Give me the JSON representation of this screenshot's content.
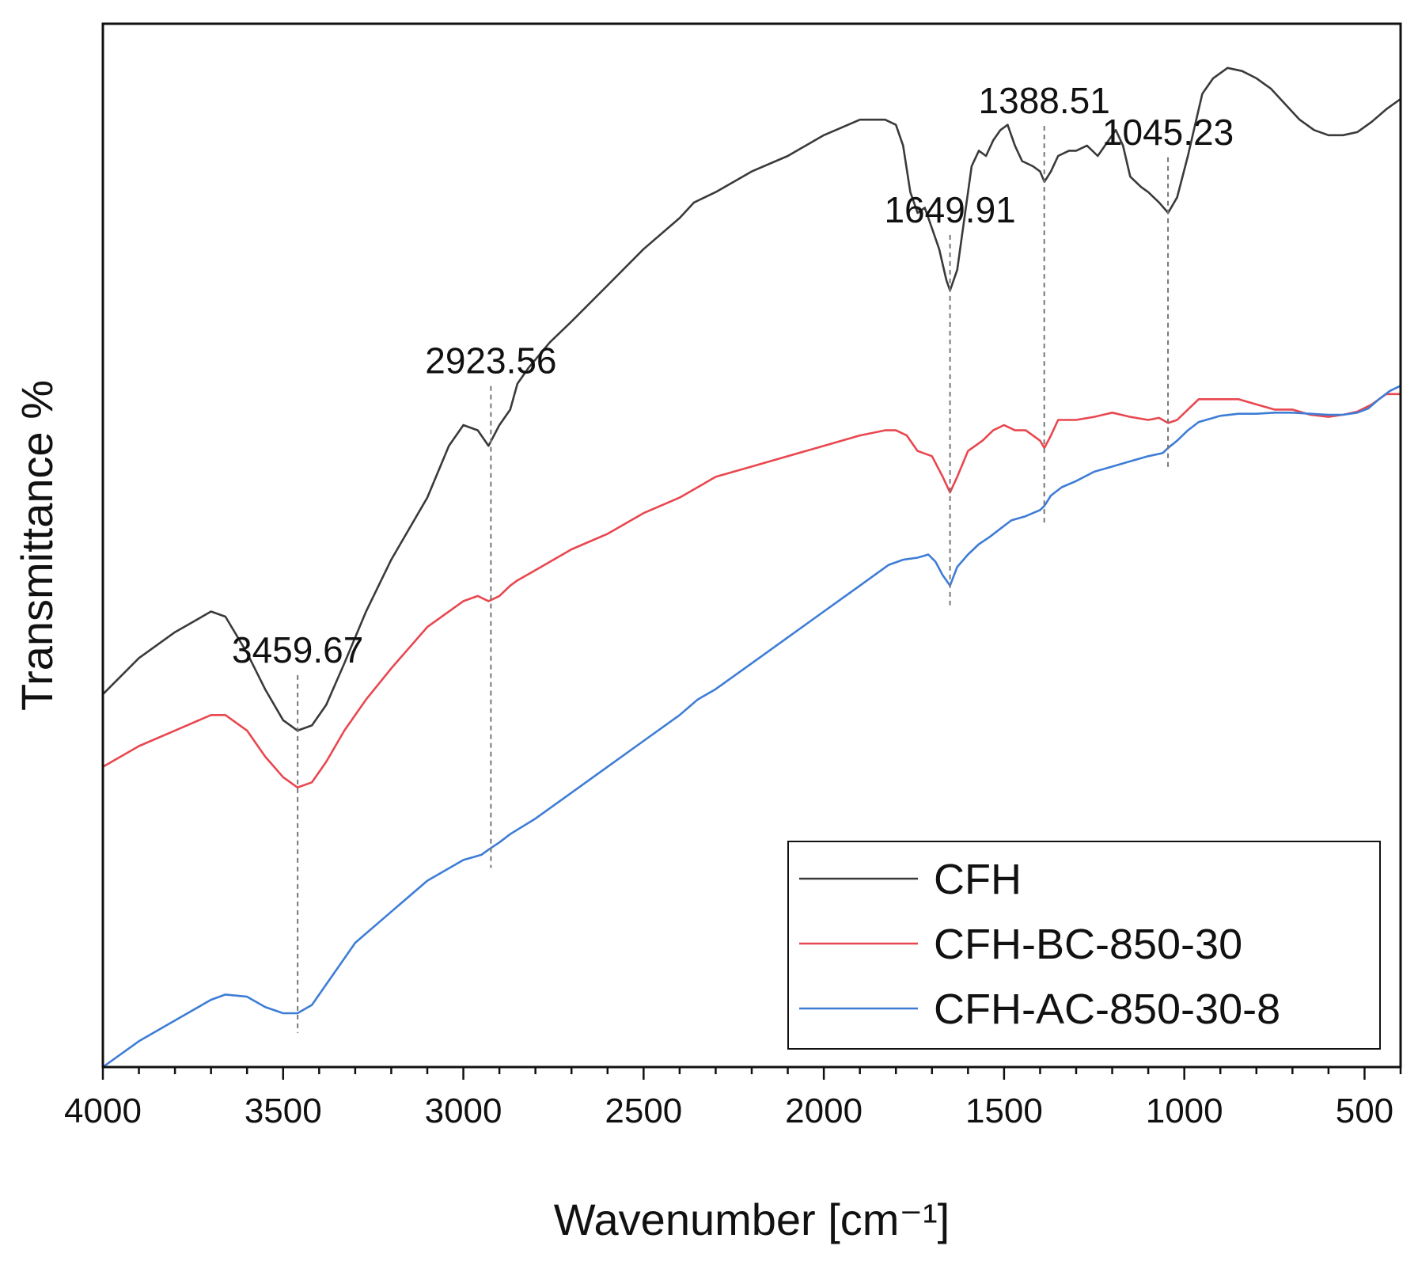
{
  "chart_data": {
    "type": "line",
    "title": "",
    "xlabel": "Wavenumber [cm⁻¹]",
    "ylabel": "Transmittance %",
    "xlim": [
      4000,
      400
    ],
    "x_reversed": true,
    "y_units": "arbitrary (offset, no tick labels)",
    "ylim": [
      0,
      100
    ],
    "x_ticks": [
      4000,
      3500,
      3000,
      2500,
      2000,
      1500,
      1000,
      500
    ],
    "x_tick_labels": [
      "4000",
      "3500",
      "3000",
      "2500",
      "2000",
      "1500",
      "1000",
      "500"
    ],
    "grid": false,
    "legend_position": "bottom-right",
    "series": [
      {
        "name": "CFH",
        "color": "#3a3a3a",
        "points": [
          [
            4000,
            36
          ],
          [
            3900,
            39.5
          ],
          [
            3800,
            42
          ],
          [
            3750,
            43
          ],
          [
            3700,
            44
          ],
          [
            3660,
            43.5
          ],
          [
            3600,
            40
          ],
          [
            3550,
            36.5
          ],
          [
            3500,
            33.5
          ],
          [
            3460,
            32.5
          ],
          [
            3420,
            33
          ],
          [
            3380,
            35
          ],
          [
            3330,
            39
          ],
          [
            3270,
            44
          ],
          [
            3200,
            49
          ],
          [
            3100,
            55
          ],
          [
            3040,
            60
          ],
          [
            3000,
            62
          ],
          [
            2960,
            61.5
          ],
          [
            2930,
            60
          ],
          [
            2900,
            62
          ],
          [
            2870,
            63.5
          ],
          [
            2850,
            66
          ],
          [
            2820,
            67.5
          ],
          [
            2760,
            70
          ],
          [
            2700,
            72
          ],
          [
            2600,
            75.5
          ],
          [
            2500,
            79
          ],
          [
            2400,
            82
          ],
          [
            2360,
            83.5
          ],
          [
            2300,
            84.5
          ],
          [
            2200,
            86.5
          ],
          [
            2100,
            88
          ],
          [
            2000,
            90
          ],
          [
            1900,
            91.5
          ],
          [
            1830,
            91.5
          ],
          [
            1800,
            91
          ],
          [
            1780,
            89
          ],
          [
            1760,
            84.5
          ],
          [
            1740,
            82.5
          ],
          [
            1720,
            83
          ],
          [
            1700,
            81
          ],
          [
            1680,
            79
          ],
          [
            1660,
            76
          ],
          [
            1650,
            75
          ],
          [
            1630,
            77
          ],
          [
            1610,
            82
          ],
          [
            1590,
            87
          ],
          [
            1570,
            88.5
          ],
          [
            1550,
            88
          ],
          [
            1530,
            89.5
          ],
          [
            1510,
            90.5
          ],
          [
            1490,
            91
          ],
          [
            1470,
            89
          ],
          [
            1450,
            87.5
          ],
          [
            1420,
            87
          ],
          [
            1400,
            86.5
          ],
          [
            1388,
            85.5
          ],
          [
            1370,
            86.5
          ],
          [
            1350,
            88
          ],
          [
            1320,
            88.5
          ],
          [
            1300,
            88.5
          ],
          [
            1270,
            89
          ],
          [
            1240,
            88
          ],
          [
            1210,
            89.5
          ],
          [
            1190,
            90.5
          ],
          [
            1170,
            89
          ],
          [
            1150,
            86
          ],
          [
            1120,
            85
          ],
          [
            1100,
            84.5
          ],
          [
            1070,
            83.5
          ],
          [
            1045,
            82.5
          ],
          [
            1020,
            84
          ],
          [
            990,
            88
          ],
          [
            970,
            91
          ],
          [
            950,
            94
          ],
          [
            920,
            95.5
          ],
          [
            880,
            96.5
          ],
          [
            840,
            96.2
          ],
          [
            800,
            95.5
          ],
          [
            760,
            94.5
          ],
          [
            720,
            93
          ],
          [
            680,
            91.5
          ],
          [
            640,
            90.5
          ],
          [
            600,
            90
          ],
          [
            560,
            90
          ],
          [
            520,
            90.3
          ],
          [
            480,
            91.3
          ],
          [
            440,
            92.5
          ],
          [
            400,
            93.5
          ]
        ]
      },
      {
        "name": "CFH-BC-850-30",
        "color": "#e8474f",
        "points": [
          [
            4000,
            29
          ],
          [
            3900,
            31
          ],
          [
            3800,
            32.5
          ],
          [
            3700,
            34
          ],
          [
            3660,
            34
          ],
          [
            3600,
            32.5
          ],
          [
            3550,
            30
          ],
          [
            3500,
            28
          ],
          [
            3460,
            27
          ],
          [
            3420,
            27.5
          ],
          [
            3380,
            29.5
          ],
          [
            3330,
            32.5
          ],
          [
            3270,
            35.5
          ],
          [
            3200,
            38.5
          ],
          [
            3100,
            42.5
          ],
          [
            3000,
            45
          ],
          [
            2960,
            45.5
          ],
          [
            2930,
            45
          ],
          [
            2900,
            45.5
          ],
          [
            2870,
            46.5
          ],
          [
            2850,
            47
          ],
          [
            2800,
            48
          ],
          [
            2700,
            50
          ],
          [
            2600,
            51.5
          ],
          [
            2500,
            53.5
          ],
          [
            2400,
            55
          ],
          [
            2300,
            57
          ],
          [
            2200,
            58
          ],
          [
            2100,
            59
          ],
          [
            2000,
            60
          ],
          [
            1900,
            61
          ],
          [
            1830,
            61.5
          ],
          [
            1800,
            61.5
          ],
          [
            1770,
            61
          ],
          [
            1740,
            59.5
          ],
          [
            1700,
            59
          ],
          [
            1670,
            57
          ],
          [
            1650,
            55.5
          ],
          [
            1630,
            57
          ],
          [
            1600,
            59.5
          ],
          [
            1560,
            60.5
          ],
          [
            1530,
            61.5
          ],
          [
            1500,
            62
          ],
          [
            1470,
            61.5
          ],
          [
            1440,
            61.5
          ],
          [
            1420,
            61
          ],
          [
            1400,
            60.5
          ],
          [
            1388,
            59.8
          ],
          [
            1370,
            61
          ],
          [
            1350,
            62.5
          ],
          [
            1300,
            62.5
          ],
          [
            1250,
            62.8
          ],
          [
            1200,
            63.2
          ],
          [
            1150,
            62.8
          ],
          [
            1100,
            62.5
          ],
          [
            1070,
            62.7
          ],
          [
            1045,
            62.2
          ],
          [
            1020,
            62.5
          ],
          [
            990,
            63.5
          ],
          [
            960,
            64.5
          ],
          [
            930,
            64.5
          ],
          [
            900,
            64.5
          ],
          [
            850,
            64.5
          ],
          [
            800,
            64
          ],
          [
            750,
            63.5
          ],
          [
            700,
            63.5
          ],
          [
            650,
            63
          ],
          [
            600,
            62.8
          ],
          [
            560,
            63
          ],
          [
            520,
            63.3
          ],
          [
            480,
            64
          ],
          [
            440,
            65
          ],
          [
            400,
            65
          ]
        ]
      },
      {
        "name": "CFH-AC-850-30-8",
        "color": "#3e7dd6",
        "points": [
          [
            4000,
            0
          ],
          [
            3900,
            2.5
          ],
          [
            3800,
            4.5
          ],
          [
            3700,
            6.5
          ],
          [
            3660,
            7
          ],
          [
            3600,
            6.8
          ],
          [
            3550,
            5.8
          ],
          [
            3500,
            5.2
          ],
          [
            3460,
            5.2
          ],
          [
            3420,
            6
          ],
          [
            3380,
            8
          ],
          [
            3330,
            10.5
          ],
          [
            3300,
            12
          ],
          [
            3200,
            15
          ],
          [
            3100,
            18
          ],
          [
            3000,
            20
          ],
          [
            2950,
            20.5
          ],
          [
            2930,
            21
          ],
          [
            2900,
            21.7
          ],
          [
            2870,
            22.5
          ],
          [
            2800,
            24
          ],
          [
            2700,
            26.5
          ],
          [
            2600,
            29
          ],
          [
            2500,
            31.5
          ],
          [
            2400,
            34
          ],
          [
            2350,
            35.5
          ],
          [
            2300,
            36.5
          ],
          [
            2200,
            39
          ],
          [
            2100,
            41.5
          ],
          [
            2000,
            44
          ],
          [
            1900,
            46.5
          ],
          [
            1820,
            48.5
          ],
          [
            1780,
            49
          ],
          [
            1740,
            49.2
          ],
          [
            1710,
            49.5
          ],
          [
            1690,
            48.8
          ],
          [
            1670,
            47.5
          ],
          [
            1650,
            46.5
          ],
          [
            1630,
            48.3
          ],
          [
            1600,
            49.5
          ],
          [
            1570,
            50.5
          ],
          [
            1540,
            51.2
          ],
          [
            1510,
            52
          ],
          [
            1480,
            52.8
          ],
          [
            1440,
            53.2
          ],
          [
            1400,
            53.8
          ],
          [
            1388,
            54.2
          ],
          [
            1370,
            55.2
          ],
          [
            1340,
            56
          ],
          [
            1300,
            56.6
          ],
          [
            1250,
            57.5
          ],
          [
            1200,
            58
          ],
          [
            1150,
            58.5
          ],
          [
            1100,
            59
          ],
          [
            1060,
            59.3
          ],
          [
            1045,
            59.8
          ],
          [
            1020,
            60.5
          ],
          [
            990,
            61.5
          ],
          [
            960,
            62.3
          ],
          [
            930,
            62.6
          ],
          [
            900,
            62.9
          ],
          [
            850,
            63.1
          ],
          [
            800,
            63.1
          ],
          [
            750,
            63.2
          ],
          [
            700,
            63.2
          ],
          [
            650,
            63.1
          ],
          [
            600,
            63
          ],
          [
            560,
            63
          ],
          [
            520,
            63.2
          ],
          [
            490,
            63.6
          ],
          [
            460,
            64.5
          ],
          [
            430,
            65.3
          ],
          [
            400,
            65.8
          ]
        ]
      }
    ],
    "annotations": [
      {
        "label": "3459.67",
        "x": 3459.67
      },
      {
        "label": "2923.56",
        "x": 2923.56
      },
      {
        "label": "1649.91",
        "x": 1649.91
      },
      {
        "label": "1388.51",
        "x": 1388.51
      },
      {
        "label": "1045.23",
        "x": 1045.23
      }
    ]
  }
}
